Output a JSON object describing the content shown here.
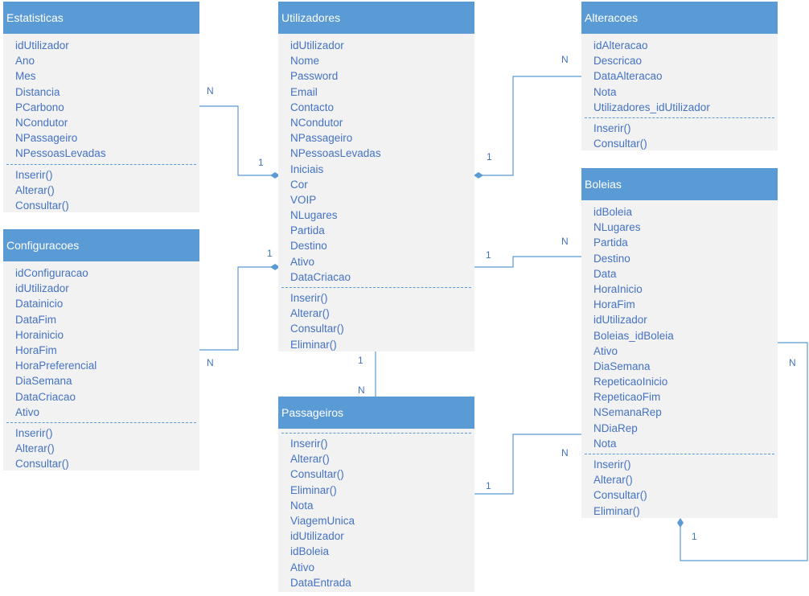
{
  "colors": {
    "header": "#5b9bd5",
    "header_text": "#ffffff",
    "body": "#f2f2f2",
    "member_text": "#4472c4",
    "connector": "#5b9bd5"
  },
  "classes": {
    "estatisticas": {
      "name": "Estatisticas",
      "attributes": [
        "idUtilizador",
        "Ano",
        "Mes",
        "Distancia",
        "PCarbono",
        "NCondutor",
        "NPassageiro",
        "NPessoasLevadas"
      ],
      "operations": [
        "Inserir()",
        "Alterar()",
        "Consultar()"
      ]
    },
    "configuracoes": {
      "name": "Configuracoes",
      "attributes": [
        "idConfiguracao",
        "idUtilizador",
        "Datainicio",
        "DataFim",
        "Horainicio",
        "HoraFim",
        "HoraPreferencial",
        "DiaSemana",
        "DataCriacao",
        "Ativo"
      ],
      "operations": [
        "Inserir()",
        "Alterar()",
        "Consultar()"
      ]
    },
    "utilizadores": {
      "name": "Utilizadores",
      "attributes": [
        "idUtilizador",
        "Nome",
        "Password",
        "Email",
        "Contacto",
        "NCondutor",
        "NPassageiro",
        "NPessoasLevadas",
        "Iniciais",
        "Cor",
        "VOIP",
        "NLugares",
        "Partida",
        "Destino",
        "Ativo",
        "DataCriacao"
      ],
      "operations": [
        "Inserir()",
        "Alterar()",
        "Consultar()",
        "Eliminar()"
      ]
    },
    "passageiros": {
      "name": "Passageiros",
      "attributes": [],
      "operations": [
        "Inserir()",
        "Alterar()",
        "Consultar()",
        "Eliminar()",
        "Nota",
        "ViagemUnica",
        "idUtilizador",
        "idBoleia",
        "Ativo",
        "DataEntrada"
      ]
    },
    "alteracoes": {
      "name": "Alteracoes",
      "attributes": [
        "idAlteracao",
        "Descricao",
        "DataAlteracao",
        "Nota",
        "Utilizadores_idUtilizador"
      ],
      "operations": [
        "Inserir()",
        "Consultar()"
      ]
    },
    "boleias": {
      "name": "Boleias",
      "attributes": [
        "idBoleia",
        "NLugares",
        "Partida",
        "Destino",
        "Data",
        "HoraInicio",
        "HoraFim",
        "idUtilizador",
        "Boleias_idBoleia",
        "Ativo",
        "DiaSemana",
        "RepeticaoInicio",
        "RepeticaoFim",
        "NSemanaRep",
        "NDiaRep",
        "Nota"
      ],
      "operations": [
        "Inserir()",
        "Alterar()",
        "Consultar()",
        "Eliminar()"
      ]
    }
  },
  "multiplicities": {
    "est_n": "N",
    "est_1": "1",
    "cfg_1": "1",
    "cfg_n": "N",
    "alt_n": "N",
    "alt_1": "1",
    "bol_n": "N",
    "bol_1": "1",
    "pas_1": "1",
    "pas_n": "N",
    "pb_1": "1",
    "pb_n": "N",
    "self_n": "N",
    "self_1": "1"
  }
}
